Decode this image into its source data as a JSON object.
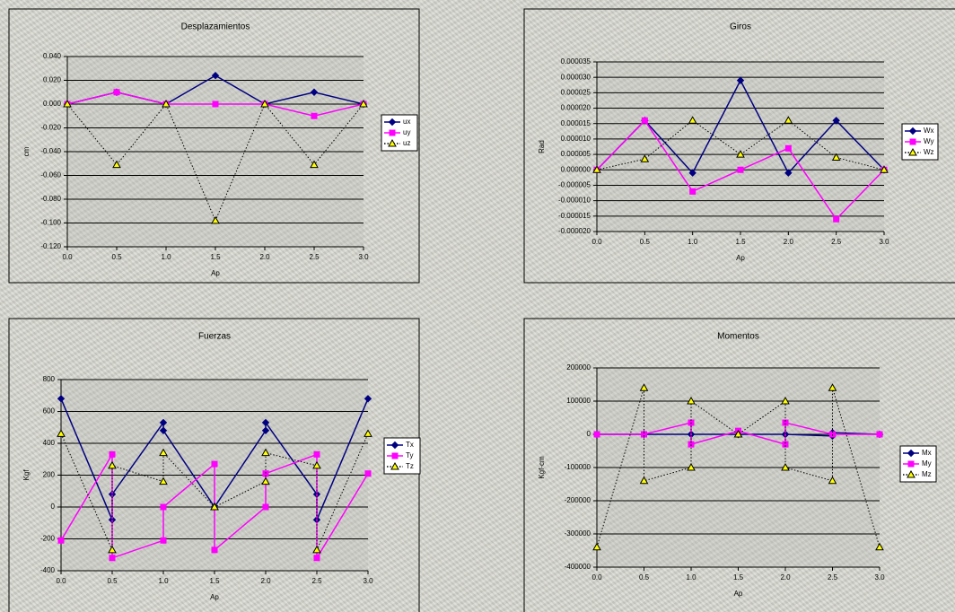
{
  "chart_data": [
    {
      "type": "line",
      "title": "Desplazamientos",
      "x_label": "Ap",
      "y_label": "cm",
      "x": [
        0,
        0.5,
        1.0,
        1.5,
        2.0,
        2.5,
        3.0
      ],
      "xlim": [
        0,
        3
      ],
      "xticks": [
        {
          "value": 0,
          "label": "0.0"
        },
        {
          "value": 0.5,
          "label": "0.5"
        },
        {
          "value": 1,
          "label": "1.0"
        },
        {
          "value": 1.5,
          "label": "1.5"
        },
        {
          "value": 2,
          "label": "2.0"
        },
        {
          "value": 2.5,
          "label": "2.5"
        },
        {
          "value": 3,
          "label": "3.0"
        }
      ],
      "ylim": [
        -0.12,
        0.04
      ],
      "yticks": [
        {
          "value": 0.04,
          "label": "0.040"
        },
        {
          "value": 0.02,
          "label": "0.020"
        },
        {
          "value": 0,
          "label": "0.000"
        },
        {
          "value": -0.02,
          "label": "-0.020"
        },
        {
          "value": -0.04,
          "label": "-0.040"
        },
        {
          "value": -0.06,
          "label": "-0.060"
        },
        {
          "value": -0.08,
          "label": "-0.080"
        },
        {
          "value": -0.1,
          "label": "-0.100"
        },
        {
          "value": -0.12,
          "label": "-0.120"
        }
      ],
      "grid": true,
      "legend": "right",
      "series": [
        {
          "name": "ux",
          "color": "#000080",
          "marker": "diamond",
          "values": [
            0,
            0.01,
            0,
            0.024,
            0,
            0.01,
            0
          ]
        },
        {
          "name": "uy",
          "color": "#ff00ff",
          "marker": "square",
          "values": [
            0,
            0.01,
            0,
            0,
            0,
            -0.01,
            0
          ]
        },
        {
          "name": "uz",
          "color": "#000000",
          "marker": "triangle",
          "marker_fill": "#ffff00",
          "line_style": "dotted",
          "values": [
            0,
            -0.051,
            0,
            -0.098,
            0,
            -0.051,
            0
          ]
        }
      ]
    },
    {
      "type": "line",
      "title": "Giros",
      "x_label": "Ap",
      "y_label": "Rad",
      "x": [
        0,
        0.5,
        1.0,
        1.5,
        2.0,
        2.5,
        3.0
      ],
      "xlim": [
        0,
        3
      ],
      "xticks": [
        {
          "value": 0,
          "label": "0.0"
        },
        {
          "value": 0.5,
          "label": "0.5"
        },
        {
          "value": 1,
          "label": "1.0"
        },
        {
          "value": 1.5,
          "label": "1.5"
        },
        {
          "value": 2,
          "label": "2.0"
        },
        {
          "value": 2.5,
          "label": "2.5"
        },
        {
          "value": 3,
          "label": "3.0"
        }
      ],
      "ylim": [
        -2e-05,
        3.5e-05
      ],
      "yticks": [
        {
          "value": 3.5e-05,
          "label": "0.000035"
        },
        {
          "value": 3e-05,
          "label": "0.000030"
        },
        {
          "value": 2.5e-05,
          "label": "0.000025"
        },
        {
          "value": 2e-05,
          "label": "0.000020"
        },
        {
          "value": 1.5e-05,
          "label": "0.000015"
        },
        {
          "value": 1e-05,
          "label": "0.000010"
        },
        {
          "value": 5e-06,
          "label": "0.000005"
        },
        {
          "value": 0,
          "label": "0.000000"
        },
        {
          "value": -5e-06,
          "label": "-0.000005"
        },
        {
          "value": -1e-05,
          "label": "-0.000010"
        },
        {
          "value": -1.5e-05,
          "label": "-0.000015"
        },
        {
          "value": -2e-05,
          "label": "-0.000020"
        }
      ],
      "grid": true,
      "legend": "right",
      "series": [
        {
          "name": "Wx",
          "color": "#000080",
          "marker": "diamond",
          "values": [
            0,
            1.6e-05,
            -1e-06,
            2.9e-05,
            -1e-06,
            1.6e-05,
            0
          ]
        },
        {
          "name": "Wy",
          "color": "#ff00ff",
          "marker": "square",
          "values": [
            0,
            1.6e-05,
            -7e-06,
            0,
            7e-06,
            -1.6e-05,
            0
          ]
        },
        {
          "name": "Wz",
          "color": "#000000",
          "marker": "triangle",
          "marker_fill": "#ffff00",
          "line_style": "dotted",
          "values": [
            0,
            3.5e-06,
            1.6e-05,
            5e-06,
            1.6e-05,
            4e-06,
            0
          ]
        }
      ]
    },
    {
      "type": "line",
      "title": "Fuerzas",
      "x_label": "Ap",
      "y_label": "Kgf",
      "x": [
        0,
        0.5,
        0.5,
        1.0,
        1.0,
        1.5,
        1.5,
        2.0,
        2.0,
        2.5,
        2.5,
        3.0
      ],
      "xlim": [
        0,
        3
      ],
      "xticks": [
        {
          "value": 0,
          "label": "0.0"
        },
        {
          "value": 0.5,
          "label": "0.5"
        },
        {
          "value": 1,
          "label": "1.0"
        },
        {
          "value": 1.5,
          "label": "1.5"
        },
        {
          "value": 2,
          "label": "2.0"
        },
        {
          "value": 2.5,
          "label": "2.5"
        },
        {
          "value": 3,
          "label": "3.0"
        }
      ],
      "ylim": [
        -400,
        800
      ],
      "yticks": [
        800,
        600,
        400,
        200,
        0,
        -200,
        -400
      ],
      "grid": true,
      "legend": "right",
      "series": [
        {
          "name": "Tx",
          "color": "#000080",
          "marker": "diamond",
          "values": [
            680,
            -80,
            80,
            530,
            480,
            0,
            0,
            480,
            530,
            80,
            -80,
            680
          ]
        },
        {
          "name": "Ty",
          "color": "#ff00ff",
          "marker": "square",
          "values": [
            -210,
            330,
            -320,
            -210,
            0,
            270,
            -270,
            0,
            210,
            330,
            -320,
            210
          ]
        },
        {
          "name": "Tz",
          "color": "#000000",
          "marker": "triangle",
          "marker_fill": "#ffff00",
          "line_style": "dotted",
          "values": [
            460,
            -270,
            260,
            160,
            340,
            0,
            0,
            160,
            340,
            260,
            -270,
            460
          ]
        }
      ]
    },
    {
      "type": "line",
      "title": "Momentos",
      "x_label": "Ap",
      "y_label": "Kgf-cm",
      "x": [
        0,
        0.5,
        0.5,
        1.0,
        1.0,
        1.5,
        1.5,
        2.0,
        2.0,
        2.5,
        2.5,
        3.0
      ],
      "xlim": [
        0,
        3
      ],
      "xticks": [
        {
          "value": 0,
          "label": "0.0"
        },
        {
          "value": 0.5,
          "label": "0.5"
        },
        {
          "value": 1,
          "label": "1.0"
        },
        {
          "value": 1.5,
          "label": "1.5"
        },
        {
          "value": 2,
          "label": "2.0"
        },
        {
          "value": 2.5,
          "label": "2.5"
        },
        {
          "value": 3,
          "label": "3.0"
        }
      ],
      "ylim": [
        -400000,
        200000
      ],
      "yticks": [
        200000,
        100000,
        0,
        -100000,
        -200000,
        -300000,
        -400000
      ],
      "grid": true,
      "legend": "right",
      "series": [
        {
          "name": "Mx",
          "color": "#000080",
          "marker": "diamond",
          "values": [
            0,
            0,
            0,
            0,
            0,
            0,
            0,
            0,
            0,
            -5000,
            5000,
            0
          ]
        },
        {
          "name": "My",
          "color": "#ff00ff",
          "marker": "square",
          "values": [
            0,
            0,
            0,
            35000,
            -30000,
            10000,
            10000,
            -30000,
            35000,
            0,
            0,
            0
          ]
        },
        {
          "name": "Mz",
          "color": "#000000",
          "marker": "triangle",
          "marker_fill": "#ffff00",
          "line_style": "dotted",
          "values": [
            -340000,
            140000,
            -140000,
            -100000,
            100000,
            0,
            0,
            100000,
            -100000,
            -140000,
            140000,
            -340000
          ]
        }
      ]
    }
  ]
}
